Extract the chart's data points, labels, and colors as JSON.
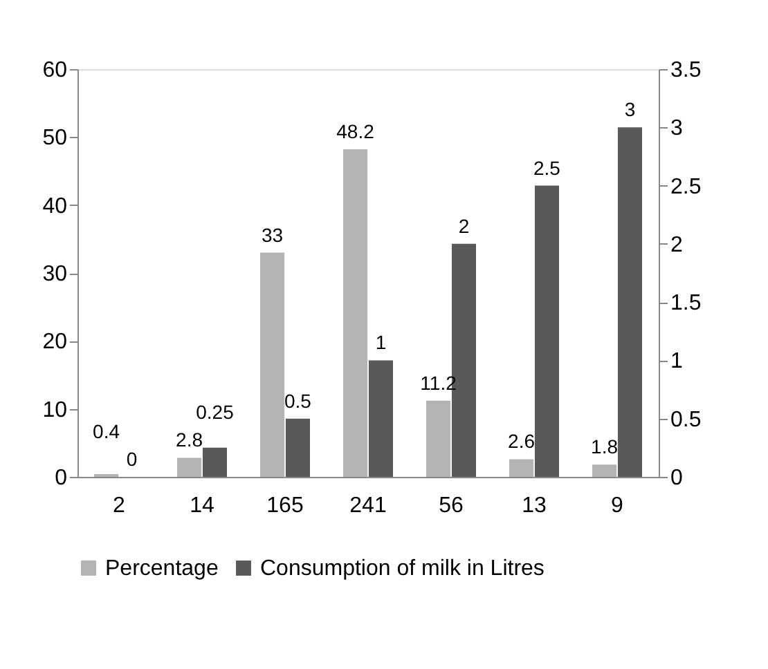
{
  "chart_data": {
    "type": "bar",
    "categories": [
      "2",
      "14",
      "165",
      "241",
      "56",
      "13",
      "9"
    ],
    "series": [
      {
        "name": "Percentage",
        "color": "#b3b3b3",
        "values": [
          0.4,
          2.8,
          33,
          48.2,
          11.2,
          2.6,
          1.8
        ]
      },
      {
        "name": "Consumption of milk in Litres",
        "color": "#595959",
        "axis": "y2",
        "values": [
          0,
          0.25,
          0.5,
          1,
          2,
          2.5,
          3
        ]
      }
    ],
    "ylim": [
      0,
      60
    ],
    "yticks": [
      0,
      10,
      20,
      30,
      40,
      50,
      60
    ],
    "y2lim": [
      0,
      3.5
    ],
    "y2ticks": [
      0,
      0.5,
      1,
      1.5,
      2,
      2.5,
      3,
      3.5
    ],
    "data_labels": true,
    "grid": false,
    "legend": "bottom"
  }
}
